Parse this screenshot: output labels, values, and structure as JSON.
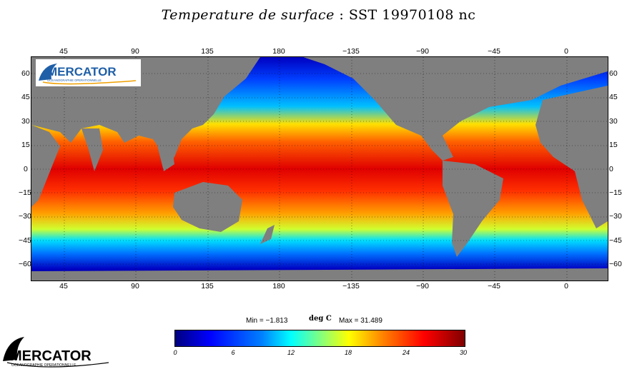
{
  "title": {
    "italic_part": "Temperature de surface",
    "rest": ": SST 19970108 nc"
  },
  "map": {
    "lon_ticks": [
      "45",
      "90",
      "135",
      "180",
      "−135",
      "−90",
      "−45",
      "0"
    ],
    "lat_ticks_left": [
      "60",
      "45",
      "30",
      "15",
      "0",
      "−15",
      "−30",
      "−45",
      "−60"
    ],
    "lat_ticks_right": [
      "60",
      "45",
      "30",
      "15",
      "0",
      "−15",
      "−30",
      "−45",
      "−60"
    ],
    "land_color": "#7f7f7f"
  },
  "logo": {
    "name": "MERCATOR",
    "subtitle": "OCEANOGRAPHIE OPERATIONNELLE"
  },
  "colorbar": {
    "min_label": "Min = −1.813",
    "unit": "deg C",
    "max_label": "Max = 31.489",
    "ticks": [
      "0",
      "6",
      "12",
      "18",
      "24",
      "30"
    ]
  }
}
